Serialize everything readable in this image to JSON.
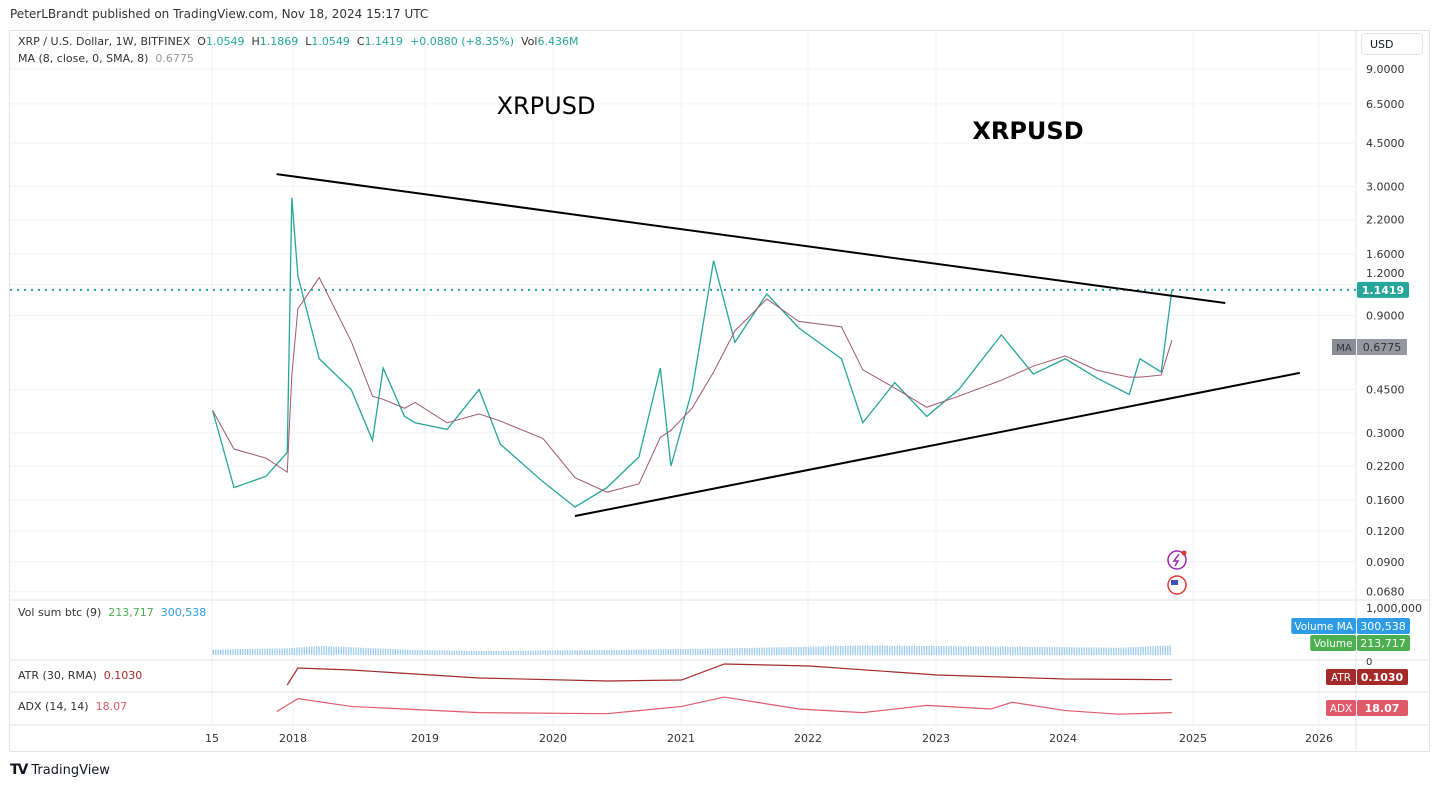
{
  "publisher_line": "PeterLBrandt published on TradingView.com, Nov 18, 2024 15:17 UTC",
  "header": {
    "symbol": "XRP / U.S. Dollar, 1W, BITFINEX",
    "o_label": "O",
    "o": "1.0549",
    "h_label": "H",
    "h": "1.1869",
    "l_label": "L",
    "l": "1.0549",
    "c_label": "C",
    "c": "1.1419",
    "change": "+0.0880 (+8.35%)",
    "vol_label": "Vol",
    "vol": "6.436M",
    "ma_label": "MA (8, close, 0, SMA, 8)",
    "ma_value": "0.6775"
  },
  "currency": "USD",
  "annotations": [
    {
      "text": "XRPUSD",
      "bold": false
    },
    {
      "text": "XRPUSD",
      "bold": true
    }
  ],
  "price_axis": [
    "9.0000",
    "6.5000",
    "4.5000",
    "3.0000",
    "2.2000",
    "1.6000",
    "1.2000",
    "0.9000",
    "0.4500",
    "0.3000",
    "0.2200",
    "0.1600",
    "0.1200",
    "0.0900",
    "0.0680"
  ],
  "price_tag": {
    "value": "1.1419",
    "color": "#26a69a"
  },
  "ma_tag": {
    "label": "MA",
    "value": "0.6775"
  },
  "time_axis": [
    "15",
    "2018",
    "2019",
    "2020",
    "2021",
    "2022",
    "2023",
    "2024",
    "2025",
    "2026"
  ],
  "volume_pane": {
    "label": "Vol sum btc (9)",
    "v1": "213,717",
    "v2": "300,538",
    "axis_top": "1,000,000",
    "axis_zero": "0",
    "tags": [
      {
        "label": "Volume MA",
        "value": "300,538",
        "color": "#2e9be6"
      },
      {
        "label": "Volume",
        "value": "213,717",
        "color": "#4caf50"
      }
    ]
  },
  "atr_pane": {
    "label": "ATR (30, RMA)",
    "value": "0.1030",
    "tag_label": "ATR",
    "color": "#a52a2a"
  },
  "adx_pane": {
    "label": "ADX (14, 14)",
    "value": "18.07",
    "tag_label": "ADX",
    "color": "#e05a6a"
  },
  "footer_logo": "TradingView",
  "chart_data": {
    "type": "line",
    "title": "XRP / U.S. Dollar, 1W, BITFINEX",
    "y_scale": "log",
    "ylim": [
      0.068,
      9.0
    ],
    "xlim": [
      "2017-04",
      "2026-03"
    ],
    "grid": true,
    "close": [
      [
        "2017-05",
        0.37
      ],
      [
        "2017-07",
        0.18
      ],
      [
        "2017-10",
        0.2
      ],
      [
        "2017-12",
        0.25
      ],
      [
        "2017-12-28",
        2.7
      ],
      [
        "2018-01",
        1.3
      ],
      [
        "2018-03",
        0.6
      ],
      [
        "2018-06",
        0.45
      ],
      [
        "2018-08",
        0.28
      ],
      [
        "2018-09",
        0.55
      ],
      [
        "2018-11",
        0.35
      ],
      [
        "2018-12",
        0.33
      ],
      [
        "2019-03",
        0.31
      ],
      [
        "2019-06",
        0.45
      ],
      [
        "2019-08",
        0.27
      ],
      [
        "2019-12",
        0.19
      ],
      [
        "2020-03",
        0.15
      ],
      [
        "2020-06",
        0.18
      ],
      [
        "2020-09",
        0.24
      ],
      [
        "2020-11",
        0.55
      ],
      [
        "2020-12",
        0.22
      ],
      [
        "2021-02",
        0.45
      ],
      [
        "2021-04",
        1.5
      ],
      [
        "2021-06",
        0.7
      ],
      [
        "2021-09",
        1.1
      ],
      [
        "2021-12",
        0.8
      ],
      [
        "2022-04",
        0.6
      ],
      [
        "2022-06",
        0.33
      ],
      [
        "2022-09",
        0.48
      ],
      [
        "2022-12",
        0.35
      ],
      [
        "2023-03",
        0.45
      ],
      [
        "2023-07",
        0.75
      ],
      [
        "2023-10",
        0.52
      ],
      [
        "2024-01",
        0.6
      ],
      [
        "2024-04",
        0.5
      ],
      [
        "2024-07",
        0.43
      ],
      [
        "2024-08",
        0.6
      ],
      [
        "2024-10",
        0.53
      ],
      [
        "2024-11",
        1.1419
      ]
    ],
    "trendlines": [
      {
        "from": [
          "2017-11",
          3.37
        ],
        "to": [
          "2025-04",
          1.01
        ]
      },
      {
        "from": [
          "2020-03",
          0.138
        ],
        "to": [
          "2025-11",
          0.526
        ]
      }
    ],
    "last_price_line": 1.1419,
    "volume": [
      [
        "2017-05",
        120000
      ],
      [
        "2017-12",
        150000
      ],
      [
        "2018-03",
        200000
      ],
      [
        "2018-12",
        110000
      ],
      [
        "2019-06",
        90000
      ],
      [
        "2020-06",
        110000
      ],
      [
        "2021-06",
        150000
      ],
      [
        "2022-06",
        210000
      ],
      [
        "2023-06",
        190000
      ],
      [
        "2024-06",
        160000
      ],
      [
        "2024-11",
        213717
      ]
    ],
    "atr": [
      [
        "2017-12",
        0.05
      ],
      [
        "2018-01",
        0.22
      ],
      [
        "2018-06",
        0.2
      ],
      [
        "2019-06",
        0.12
      ],
      [
        "2020-06",
        0.09
      ],
      [
        "2021-01",
        0.1
      ],
      [
        "2021-05",
        0.26
      ],
      [
        "2022-01",
        0.24
      ],
      [
        "2023-01",
        0.15
      ],
      [
        "2024-01",
        0.11
      ],
      [
        "2024-11",
        0.103
      ]
    ],
    "adx": [
      [
        "2017-11",
        20
      ],
      [
        "2018-01",
        45
      ],
      [
        "2018-06",
        30
      ],
      [
        "2019-06",
        18
      ],
      [
        "2020-06",
        16
      ],
      [
        "2021-01",
        30
      ],
      [
        "2021-05",
        48
      ],
      [
        "2021-12",
        25
      ],
      [
        "2022-06",
        18
      ],
      [
        "2022-12",
        32
      ],
      [
        "2023-06",
        25
      ],
      [
        "2023-08",
        38
      ],
      [
        "2024-01",
        22
      ],
      [
        "2024-06",
        15
      ],
      [
        "2024-11",
        18.07
      ]
    ]
  }
}
